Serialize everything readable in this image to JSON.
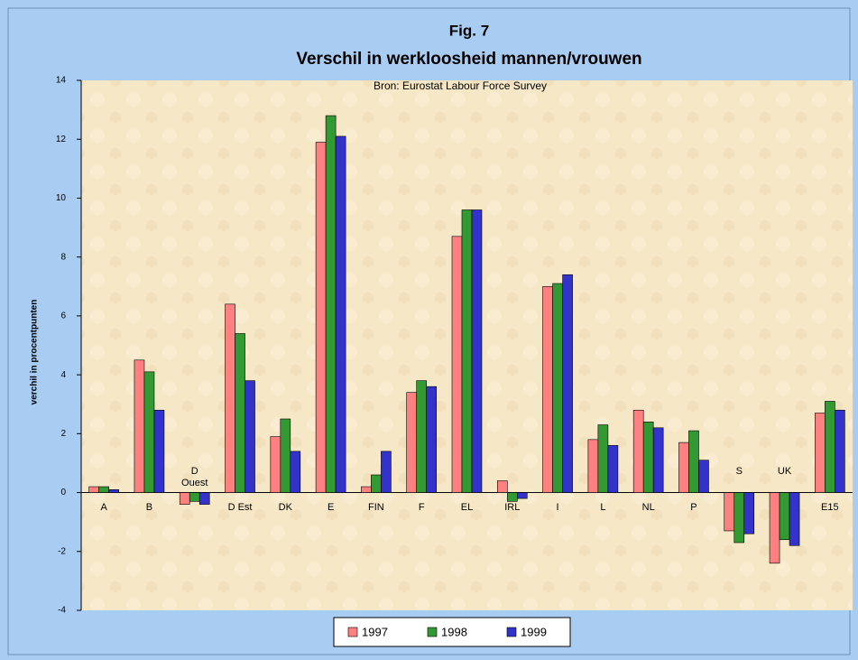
{
  "chart_data": {
    "type": "bar",
    "title": "Fig. 7",
    "subtitle": "Verschil in werkloosheid mannen/vrouwen",
    "source": "Bron: Eurostat Labour Force Survey",
    "y_label": "verchil in procentpunten",
    "categories": [
      "A",
      "B",
      "D Ouest",
      "D Est",
      "DK",
      "E",
      "FIN",
      "F",
      "EL",
      "IRL",
      "I",
      "L",
      "NL",
      "P",
      "S",
      "UK",
      "E15"
    ],
    "series": [
      {
        "name": "1997",
        "color": "#ff8080",
        "values": [
          0.2,
          4.5,
          -0.4,
          6.4,
          1.9,
          11.9,
          0.2,
          3.4,
          8.7,
          0.4,
          7.0,
          1.8,
          2.8,
          1.7,
          -1.3,
          -2.4,
          2.7
        ]
      },
      {
        "name": "1998",
        "color": "#339933",
        "values": [
          0.2,
          4.1,
          -0.3,
          5.4,
          2.5,
          12.8,
          0.6,
          3.8,
          9.6,
          -0.3,
          7.1,
          2.3,
          2.4,
          2.1,
          -1.7,
          -1.6,
          3.1
        ]
      },
      {
        "name": "1999",
        "color": "#3333cc",
        "values": [
          0.1,
          2.8,
          -0.4,
          3.8,
          1.4,
          12.1,
          1.4,
          3.6,
          9.6,
          -0.2,
          7.4,
          1.6,
          2.2,
          1.1,
          -1.4,
          -1.8,
          2.8
        ]
      }
    ],
    "ylim": [
      -4,
      14
    ],
    "yticks": [
      -4,
      -2,
      0,
      2,
      4,
      6,
      8,
      10,
      12,
      14
    ]
  }
}
